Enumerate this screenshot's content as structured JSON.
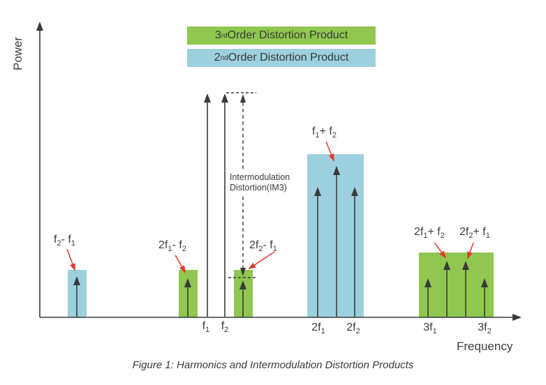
{
  "figure": {
    "caption": "Figure 1: Harmonics and Intermodulation Distortion Products",
    "y_axis_label": "Power",
    "x_axis_label": "Frequency"
  },
  "legend": {
    "third_order": {
      "label": "3^{rd} Order Distortion Product",
      "color": "#8fc750"
    },
    "second_order": {
      "label": "2^{nd} Order Distortion Product",
      "color": "#9cd0de"
    }
  },
  "annotations": {
    "im3_line1": "Intermodulation",
    "im3_line2": "Distortion(IM3)"
  },
  "peak_labels": {
    "f2_minus_f1": "f_{2}- f_{1}",
    "two_f1_minus_f2": "2f_{1}- f_{2}",
    "two_f2_minus_f1": "2f_{2}- f_{1}",
    "f1_plus_f2": "f_{1}+ f_{2}",
    "two_f1_plus_f2": "2f_{1}+ f_{2}",
    "two_f2_plus_f1": "2f_{2}+ f_{1}"
  },
  "x_ticks": {
    "f1": "f_{1}",
    "f2": "f_{2}",
    "two_f1": "2f_{1}",
    "two_f2": "2f_{2}",
    "three_f1": "3f_{1}",
    "three_f2": "3f_{2}"
  },
  "colors": {
    "third_order_green": "#8fc750",
    "second_order_blue": "#9cd0de",
    "annotation_red": "#e23b2e",
    "line_black": "#3a3a3a"
  },
  "chart_data": {
    "type": "spectrum-diagram",
    "xlabel": "Frequency",
    "ylabel": "Power",
    "legend_position": "top-center",
    "components": [
      {
        "frequency": "f2-f1",
        "order": "2nd order distortion product",
        "relative_power": "low"
      },
      {
        "frequency": "2f1-f2",
        "order": "3rd order distortion product",
        "relative_power": "low"
      },
      {
        "frequency": "f1",
        "order": "fundamental tone",
        "relative_power": "highest"
      },
      {
        "frequency": "f2",
        "order": "fundamental tone",
        "relative_power": "highest"
      },
      {
        "frequency": "2f2-f1",
        "order": "3rd order distortion product",
        "relative_power": "low",
        "annotation": "Intermodulation Distortion(IM3) measured from fundamental level"
      },
      {
        "frequency": "2f1",
        "order": "2nd order distortion product",
        "relative_power": "medium"
      },
      {
        "frequency": "f1+f2",
        "order": "2nd order distortion product",
        "relative_power": "medium-high"
      },
      {
        "frequency": "2f2",
        "order": "2nd order distortion product",
        "relative_power": "medium"
      },
      {
        "frequency": "3f1",
        "order": "3rd order distortion product",
        "relative_power": "low-medium"
      },
      {
        "frequency": "2f1+f2",
        "order": "3rd order distortion product",
        "relative_power": "low-medium"
      },
      {
        "frequency": "2f2+f1",
        "order": "3rd order distortion product",
        "relative_power": "low-medium"
      },
      {
        "frequency": "3f2",
        "order": "3rd order distortion product",
        "relative_power": "low-medium"
      }
    ]
  }
}
